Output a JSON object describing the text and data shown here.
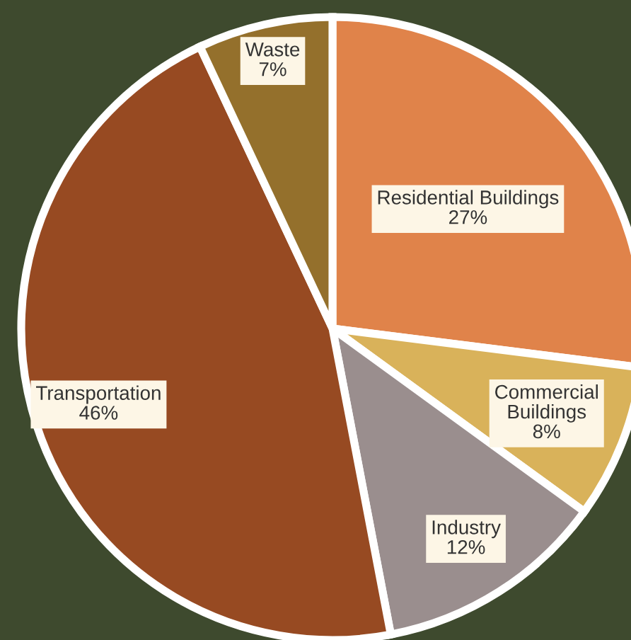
{
  "chart_data": {
    "type": "pie",
    "categories": [
      "Residential Buildings",
      "Commercial Buildings",
      "Industry",
      "Transportation",
      "Waste"
    ],
    "values": [
      27,
      8,
      12,
      46,
      7
    ],
    "colors": [
      "#e0834a",
      "#d9b25a",
      "#9a8e8e",
      "#974a22",
      "#94702c"
    ],
    "value_labels": [
      "27%",
      "8%",
      "12%",
      "46%",
      "7%"
    ]
  }
}
